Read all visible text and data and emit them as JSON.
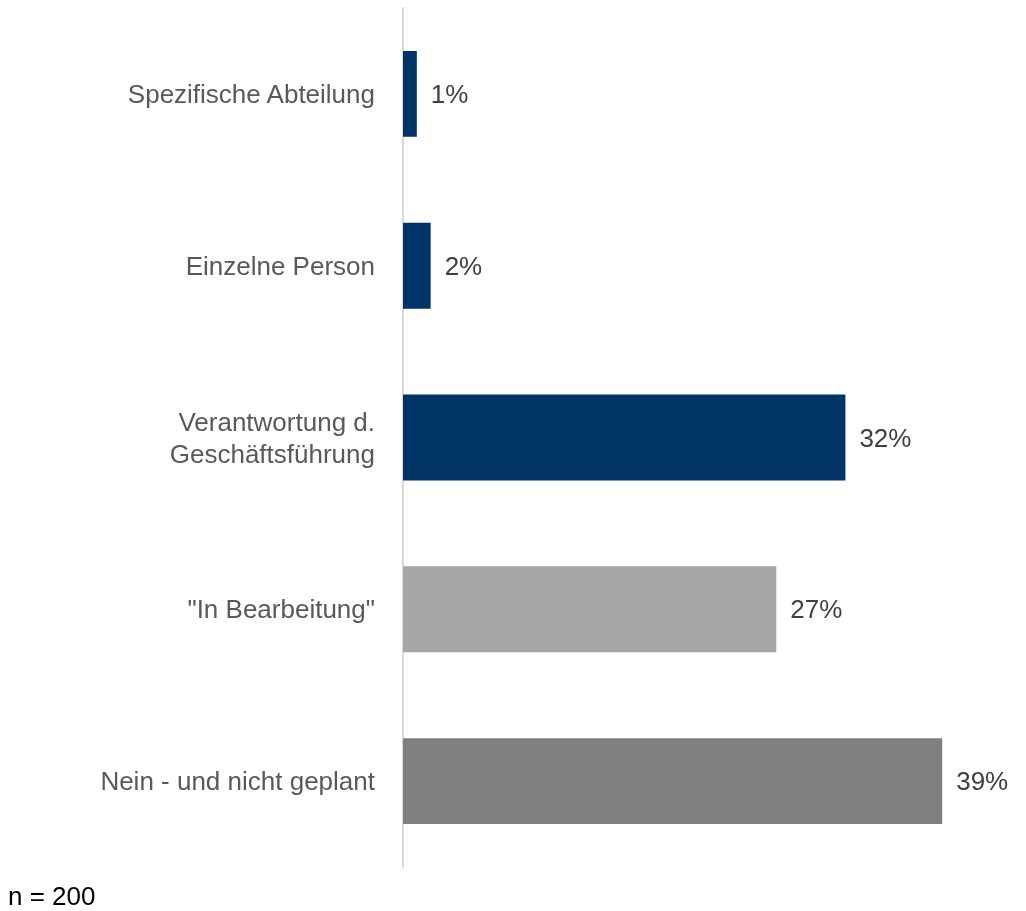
{
  "chart_data": {
    "type": "bar",
    "orientation": "horizontal",
    "categories": [
      "Spezifische Abteilung",
      "Einzelne Person",
      "Verantwortung d.\nGeschäftsführung",
      "\"In Bearbeitung\"",
      "Nein - und nicht geplant"
    ],
    "values": [
      1,
      2,
      32,
      27,
      39
    ],
    "colors": [
      "#003366",
      "#003366",
      "#003366",
      "#a6a6a6",
      "#7f7f7f"
    ],
    "data_labels": true,
    "value_labels": [
      "1%",
      "2%",
      "32%",
      "27%",
      "39%"
    ],
    "grid": false,
    "annotations": [
      "n = 200"
    ]
  }
}
